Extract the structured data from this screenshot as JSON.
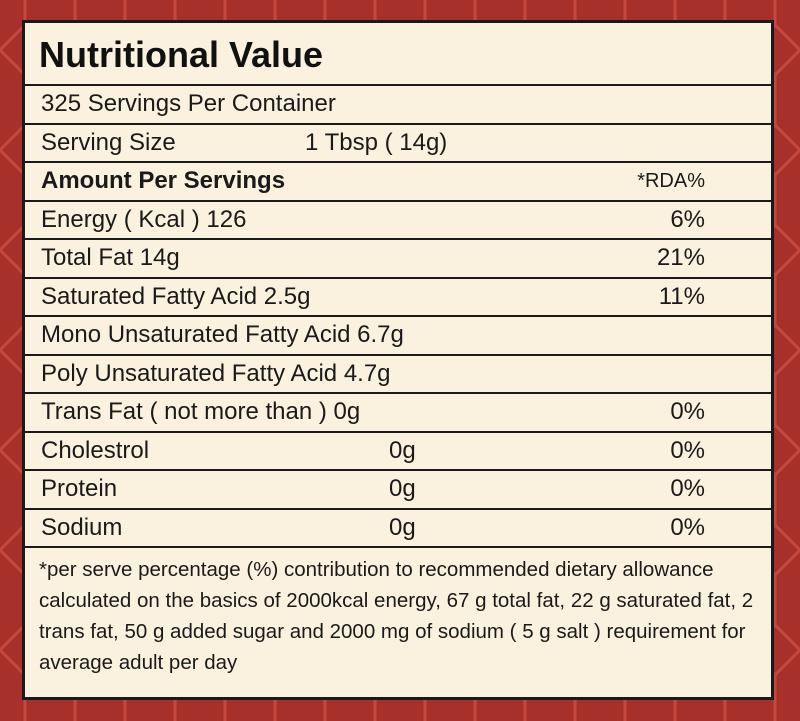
{
  "title": "Nutritional Value",
  "servings_per_container": "325 Servings Per Container",
  "serving_size": {
    "label": "Serving Size",
    "value": "1 Tbsp ( 14g)"
  },
  "header": {
    "label": "Amount Per Servings",
    "rda": "*RDA%"
  },
  "rows": [
    {
      "label": "Energy  ( Kcal ) 126",
      "amount": "",
      "rda": "6%"
    },
    {
      "label": "Total Fat 14g",
      "amount": "",
      "rda": "21%"
    },
    {
      "label": "Saturated Fatty Acid 2.5g",
      "amount": "",
      "rda": "11%"
    },
    {
      "label": "Mono Unsaturated Fatty Acid 6.7g",
      "amount": "",
      "rda": ""
    },
    {
      "label": "Poly Unsaturated Fatty Acid 4.7g",
      "amount": "",
      "rda": ""
    },
    {
      "label": "Trans Fat ( not more than ) 0g",
      "amount": "",
      "rda": "0%"
    },
    {
      "label": "Cholestrol",
      "amount": "0g",
      "rda": "0%"
    },
    {
      "label": "Protein",
      "amount": "0g",
      "rda": "0%"
    },
    {
      "label": "Sodium",
      "amount": "0g",
      "rda": "0%"
    }
  ],
  "footnote": "*per serve percentage (%) contribution to recommended dietary allowance calculated on the basics of 2000kcal energy, 67 g total fat, 22 g saturated fat, 2 trans fat, 50 g added sugar and 2000 mg of sodium ( 5 g salt ) requirement for average adult per day",
  "colors": {
    "background": "#a8302a",
    "pattern": "#c4483e",
    "panel": "#fbf1df",
    "border": "#1a1a1a"
  }
}
